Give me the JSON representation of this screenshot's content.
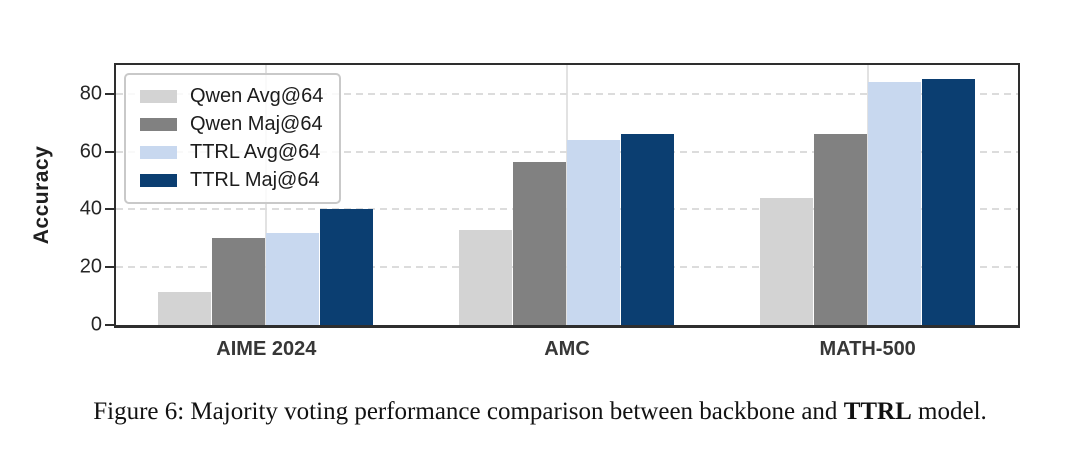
{
  "figure": {
    "caption_prefix": "Figure 6: Majority voting performance comparison between backbone and ",
    "caption_bold": "TTRL",
    "caption_suffix": " model."
  },
  "chart_data": {
    "type": "bar",
    "title": "",
    "xlabel": "",
    "ylabel": "Accuracy",
    "ylim": [
      0,
      90
    ],
    "yticks": [
      0,
      20,
      40,
      60,
      80
    ],
    "grid": {
      "horizontal": "dashed",
      "vertical": "solid-at-category-centers"
    },
    "legend_position": "upper-left",
    "categories": [
      "AIME 2024",
      "AMC",
      "MATH-500"
    ],
    "series": [
      {
        "name": "Qwen Avg@64",
        "color": "#d3d3d3",
        "values": [
          11.5,
          33,
          44
        ]
      },
      {
        "name": "Qwen Maj@64",
        "color": "#818181",
        "values": [
          30,
          56.5,
          66
        ]
      },
      {
        "name": "TTRL Avg@64",
        "color": "#c8d8ef",
        "values": [
          32,
          64,
          84
        ]
      },
      {
        "name": "TTRL Maj@64",
        "color": "#0b3e71",
        "values": [
          40,
          66,
          85
        ]
      }
    ]
  },
  "style": {
    "frame_color": "#2e2e2e",
    "grid_color": "#dcdcdc",
    "background": "#ffffff"
  }
}
